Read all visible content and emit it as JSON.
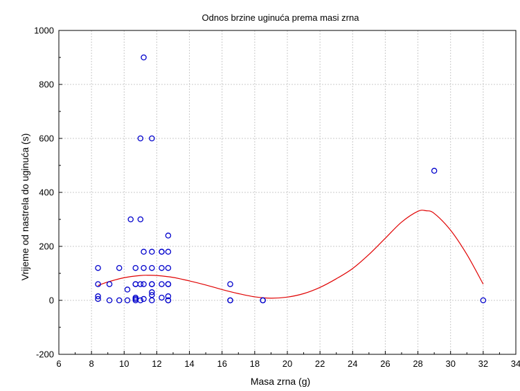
{
  "chart_data": {
    "type": "scatter",
    "title": "Odnos brzine uginuća prema masi zrna",
    "xlabel": "Masa zrna (g)",
    "ylabel": "Vrijeme od nastrela do uginuća (s)",
    "xlim": [
      6,
      34
    ],
    "ylim": [
      -200,
      1000
    ],
    "xticks": [
      6,
      8,
      10,
      12,
      14,
      16,
      18,
      20,
      22,
      24,
      26,
      28,
      30,
      32,
      34
    ],
    "yticks": [
      -200,
      0,
      200,
      400,
      600,
      800,
      1000
    ],
    "grid": true,
    "marker_color": "#0000cc",
    "fit_color": "#e00000",
    "series": [
      {
        "points": [
          [
            8.4,
            120
          ],
          [
            8.4,
            60
          ],
          [
            8.4,
            15
          ],
          [
            8.4,
            5
          ],
          [
            9.1,
            60
          ],
          [
            9.1,
            0
          ],
          [
            9.7,
            120
          ],
          [
            9.7,
            0
          ],
          [
            10.2,
            40
          ],
          [
            10.2,
            0
          ],
          [
            10.4,
            300
          ],
          [
            10.7,
            120
          ],
          [
            10.7,
            60
          ],
          [
            10.7,
            60
          ],
          [
            10.7,
            10
          ],
          [
            10.7,
            5
          ],
          [
            10.7,
            0
          ],
          [
            11.0,
            600
          ],
          [
            11.0,
            300
          ],
          [
            11.0,
            60
          ],
          [
            11.0,
            0
          ],
          [
            11.2,
            900
          ],
          [
            11.2,
            180
          ],
          [
            11.2,
            120
          ],
          [
            11.2,
            60
          ],
          [
            11.2,
            5
          ],
          [
            11.7,
            600
          ],
          [
            11.7,
            180
          ],
          [
            11.7,
            120
          ],
          [
            11.7,
            60
          ],
          [
            11.7,
            60
          ],
          [
            11.7,
            30
          ],
          [
            11.7,
            20
          ],
          [
            11.7,
            0
          ],
          [
            12.3,
            180
          ],
          [
            12.3,
            180
          ],
          [
            12.3,
            120
          ],
          [
            12.3,
            60
          ],
          [
            12.3,
            10
          ],
          [
            12.7,
            240
          ],
          [
            12.7,
            180
          ],
          [
            12.7,
            120
          ],
          [
            12.7,
            60
          ],
          [
            12.7,
            60
          ],
          [
            12.7,
            15
          ],
          [
            12.7,
            0
          ],
          [
            12.7,
            0
          ],
          [
            16.5,
            60
          ],
          [
            16.5,
            0
          ],
          [
            16.5,
            0
          ],
          [
            18.5,
            0
          ],
          [
            18.5,
            0
          ],
          [
            29.0,
            480
          ],
          [
            32.0,
            0
          ]
        ]
      }
    ],
    "fit_line": {
      "x": [
        8.4,
        9,
        10,
        11,
        11.5,
        12,
        13,
        14,
        15,
        16,
        17,
        18,
        19,
        20,
        21,
        22,
        23,
        24,
        25,
        26,
        27,
        28,
        28.5,
        29,
        30,
        31,
        32
      ],
      "y": [
        55,
        68,
        84,
        92,
        93,
        92,
        85,
        72,
        57,
        40,
        25,
        13,
        8,
        12,
        25,
        48,
        80,
        118,
        170,
        230,
        290,
        330,
        332,
        322,
        260,
        170,
        60
      ]
    }
  }
}
